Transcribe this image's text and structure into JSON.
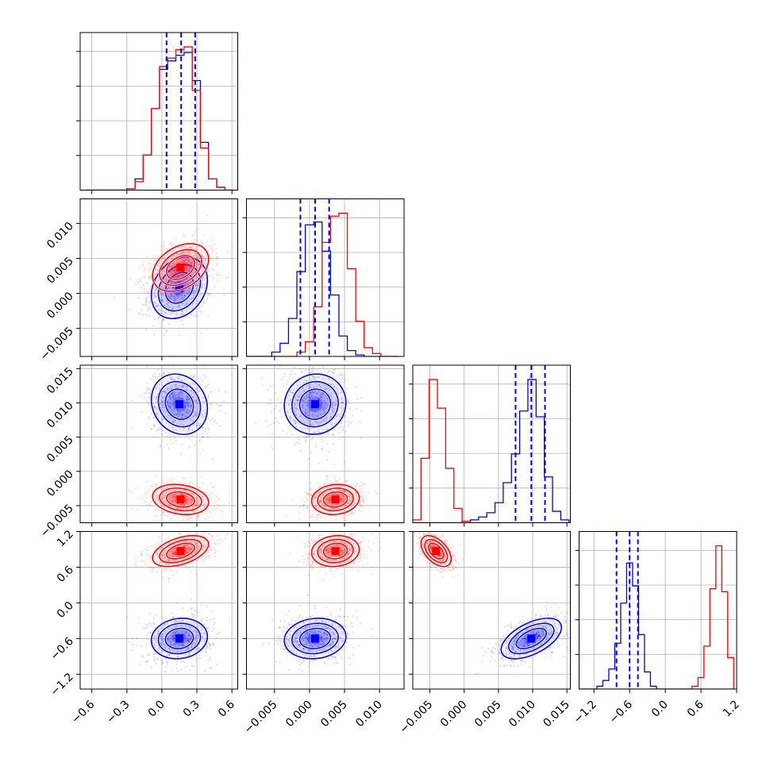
{
  "chart_data": {
    "type": "corner",
    "n_params": 4,
    "grid": true,
    "colors": {
      "blue": "#0000ff",
      "red": "#ff0000"
    },
    "params": [
      {
        "range": [
          -0.7,
          0.65
        ],
        "ticks": [
          -0.6,
          -0.3,
          0.0,
          0.3,
          0.6
        ],
        "tick_labels": [
          "−0.6",
          "−0.3",
          "0.0",
          "0.3",
          "0.6"
        ]
      },
      {
        "range": [
          -0.009,
          0.0135
        ],
        "ticks": [
          -0.005,
          0.0,
          0.005,
          0.01
        ],
        "tick_labels": [
          "−0.005",
          "0.000",
          "0.005",
          "0.010"
        ]
      },
      {
        "range": [
          -0.0075,
          0.0155
        ],
        "ticks": [
          -0.005,
          0.0,
          0.005,
          0.01,
          0.015
        ],
        "tick_labels": [
          "−0.005",
          "0.000",
          "0.005",
          "0.010",
          "0.015"
        ]
      },
      {
        "range": [
          -1.45,
          1.2
        ],
        "ticks": [
          -1.2,
          -0.6,
          0.0,
          0.6,
          1.2
        ],
        "tick_labels": [
          "−1.2",
          "−0.6",
          "0.0",
          "0.6",
          "1.2"
        ]
      }
    ],
    "quantiles_blue": [
      [
        0.04,
        0.165,
        0.285
      ],
      [
        -0.0013,
        0.0008,
        0.0028
      ],
      [
        0.0075,
        0.0098,
        0.0118
      ],
      [
        -0.82,
        -0.6,
        -0.46
      ]
    ],
    "series": [
      {
        "color": "#0000ff",
        "means": [
          0.15,
          0.0008,
          0.0098,
          -0.6
        ],
        "sds": [
          0.12,
          0.0022,
          0.0022,
          0.17
        ],
        "corr": {
          "0-1": 0.25,
          "0-2": -0.15,
          "0-3": 0.1,
          "1-2": 0.05,
          "1-3": 0.1,
          "2-3": 0.55
        }
      },
      {
        "color": "#ff0000",
        "means": [
          0.16,
          0.0037,
          -0.0041,
          0.87
        ],
        "sds": [
          0.12,
          0.0017,
          0.0011,
          0.13
        ],
        "corr": {
          "0-1": 0.35,
          "0-2": -0.2,
          "0-3": 0.45,
          "1-2": 0.1,
          "1-3": 0.1,
          "2-3": -0.5
        }
      }
    ],
    "histograms": [
      {
        "bins": [
          -0.65,
          -0.58,
          -0.51,
          -0.44,
          -0.37,
          -0.3,
          -0.23,
          -0.16,
          -0.09,
          -0.02,
          0.05,
          0.12,
          0.19,
          0.26,
          0.33,
          0.4,
          0.47,
          0.54,
          0.61
        ],
        "blue": [
          0,
          0,
          0,
          0,
          0,
          1,
          8,
          25,
          58,
          86,
          92,
          96,
          98,
          78,
          34,
          8,
          2,
          0
        ],
        "red": [
          0,
          0,
          0,
          0,
          0,
          1,
          6,
          25,
          58,
          88,
          94,
          100,
          102,
          71,
          30,
          8,
          2,
          0
        ]
      },
      {
        "bins": [
          -0.009,
          -0.0078,
          -0.0066,
          -0.0054,
          -0.0042,
          -0.003,
          -0.0018,
          -0.0006,
          0.0006,
          0.0018,
          0.003,
          0.0042,
          0.0054,
          0.0066,
          0.0078,
          0.009,
          0.0102,
          0.0114,
          0.0126
        ],
        "blue": [
          0,
          0,
          0,
          3,
          9,
          26,
          58,
          90,
          92,
          72,
          42,
          14,
          4,
          1,
          0,
          0,
          0,
          0
        ],
        "red": [
          0,
          0,
          0,
          0,
          0,
          0,
          3,
          10,
          34,
          78,
          96,
          98,
          60,
          24,
          6,
          2,
          0,
          0
        ]
      },
      {
        "bins": [
          -0.0075,
          -0.0063,
          -0.0051,
          -0.0039,
          -0.0027,
          -0.0015,
          -0.0003,
          0.0009,
          0.0021,
          0.0033,
          0.0045,
          0.0057,
          0.0069,
          0.0081,
          0.0093,
          0.0105,
          0.0117,
          0.0129,
          0.0141,
          0.0153
        ],
        "blue": [
          0,
          0,
          0,
          0,
          0,
          0,
          1,
          2,
          4,
          7,
          14,
          28,
          48,
          78,
          100,
          74,
          32,
          8,
          2
        ],
        "red": [
          2,
          45,
          100,
          80,
          38,
          10,
          1,
          0,
          0,
          0,
          0,
          0,
          0,
          0,
          0,
          0,
          0,
          0,
          0
        ]
      },
      {
        "bins": [
          -1.45,
          -1.35,
          -1.25,
          -1.15,
          -1.05,
          -0.95,
          -0.85,
          -0.75,
          -0.65,
          -0.55,
          -0.45,
          -0.35,
          -0.25,
          -0.15,
          -0.05,
          0.05,
          0.15,
          0.25,
          0.35,
          0.45,
          0.55,
          0.65,
          0.75,
          0.85,
          0.95,
          1.05,
          1.15
        ],
        "blue": [
          0,
          0,
          0,
          2,
          6,
          14,
          32,
          60,
          88,
          72,
          38,
          12,
          2,
          0,
          0,
          0,
          0,
          0,
          0,
          0,
          0,
          0,
          0,
          0,
          0,
          0
        ],
        "red": [
          0,
          0,
          0,
          0,
          0,
          0,
          0,
          0,
          0,
          0,
          0,
          0,
          0,
          0,
          0,
          0,
          0,
          0,
          0,
          2,
          8,
          30,
          70,
          100,
          68,
          22
        ]
      }
    ]
  }
}
